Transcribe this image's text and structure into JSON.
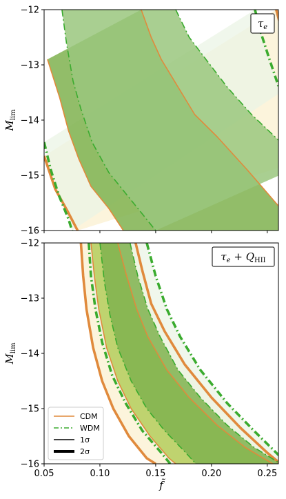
{
  "chart_data": [
    {
      "type": "area",
      "panel_label": "τe",
      "x_axis": {
        "label": "",
        "lim": [
          0.05,
          0.26
        ],
        "ticks": [
          0.05,
          0.1,
          0.15,
          0.2,
          0.25
        ],
        "tick_labels_visible": false
      },
      "y_axis": {
        "label": "M",
        "label_sub": "lim",
        "lim": [
          -16,
          -12
        ],
        "ticks": [
          -16,
          -15,
          -14,
          -13,
          -12
        ],
        "tick_labels": [
          "−16",
          "−15",
          "−14",
          "−13",
          "−12"
        ]
      },
      "series": [
        {
          "model": "CDM",
          "color": "#e08a3c",
          "fill_1sigma": "#7fb24f",
          "fill_2sigma": "#fbf0d0",
          "line": "solid",
          "one_sigma": {
            "low": [
              [
                0.053,
                -12.9
              ],
              [
                0.064,
                -13.6
              ],
              [
                0.072,
                -14.2
              ],
              [
                0.081,
                -14.7
              ],
              [
                0.092,
                -15.2
              ],
              [
                0.108,
                -15.6
              ],
              [
                0.121,
                -16.0
              ]
            ],
            "high": [
              [
                0.137,
                -12.0
              ],
              [
                0.146,
                -12.5
              ],
              [
                0.155,
                -12.9
              ],
              [
                0.17,
                -13.4
              ],
              [
                0.185,
                -13.9
              ],
              [
                0.205,
                -14.3
              ],
              [
                0.232,
                -14.9
              ],
              [
                0.262,
                -15.6
              ],
              [
                0.282,
                -16.0
              ]
            ]
          },
          "two_sigma": {
            "low": [
              [
                0.05,
                -14.65
              ],
              [
                0.06,
                -15.25
              ],
              [
                0.071,
                -15.65
              ],
              [
                0.08,
                -16.0
              ]
            ],
            "high": [
              [
                0.258,
                -12.0
              ],
              [
                0.262,
                -12.3
              ],
              [
                0.268,
                -12.9
              ],
              [
                0.275,
                -13.5
              ],
              [
                0.29,
                -14.2
              ],
              [
                0.302,
                -14.6
              ]
            ]
          }
        },
        {
          "model": "WDM",
          "color": "#3aab2e",
          "fill_1sigma": "#9ac77e",
          "fill_2sigma": "#ebf4e6",
          "line": "dashdot",
          "one_sigma": {
            "low": [
              [
                0.066,
                -12.0
              ],
              [
                0.07,
                -12.6
              ],
              [
                0.076,
                -13.3
              ],
              [
                0.083,
                -13.8
              ],
              [
                0.093,
                -14.4
              ],
              [
                0.108,
                -14.95
              ],
              [
                0.128,
                -15.45
              ],
              [
                0.15,
                -16.0
              ]
            ],
            "high": [
              [
                0.168,
                -12.0
              ],
              [
                0.18,
                -12.5
              ],
              [
                0.195,
                -12.9
              ],
              [
                0.214,
                -13.4
              ],
              [
                0.236,
                -13.9
              ],
              [
                0.262,
                -14.4
              ],
              [
                0.283,
                -14.8
              ]
            ]
          },
          "two_sigma": {
            "low": [
              [
                0.05,
                -14.4
              ],
              [
                0.056,
                -14.9
              ],
              [
                0.063,
                -15.35
              ],
              [
                0.072,
                -15.8
              ],
              [
                0.075,
                -16.0
              ]
            ],
            "high": [
              [
                0.239,
                -12.0
              ],
              [
                0.244,
                -12.4
              ],
              [
                0.252,
                -12.9
              ],
              [
                0.262,
                -13.5
              ]
            ]
          }
        }
      ]
    },
    {
      "type": "area",
      "panel_label": "τe + QHII",
      "x_axis": {
        "label": "f̃",
        "lim": [
          0.05,
          0.26
        ],
        "ticks": [
          0.05,
          0.1,
          0.15,
          0.2,
          0.25
        ],
        "tick_labels": [
          "0.05",
          "0.10",
          "0.15",
          "0.20",
          "0.25"
        ]
      },
      "y_axis": {
        "label": "M",
        "label_sub": "lim",
        "lim": [
          -16,
          -12
        ],
        "ticks": [
          -16,
          -15,
          -14,
          -13,
          -12
        ],
        "tick_labels": [
          "−16",
          "−15",
          "−14",
          "−13",
          "−12"
        ]
      },
      "series": [
        {
          "model": "CDM",
          "color": "#e08a3c",
          "fill_1sigma": "#b6cd5a",
          "fill_2sigma": "#fbf0d0",
          "line": "solid",
          "one_sigma": {
            "low": [
              [
                0.092,
                -12.0
              ],
              [
                0.095,
                -12.6
              ],
              [
                0.099,
                -13.2
              ],
              [
                0.106,
                -13.9
              ],
              [
                0.116,
                -14.5
              ],
              [
                0.128,
                -15.0
              ],
              [
                0.145,
                -15.5
              ],
              [
                0.162,
                -15.9
              ],
              [
                0.168,
                -16.0
              ]
            ],
            "high": [
              [
                0.116,
                -12.0
              ],
              [
                0.124,
                -12.6
              ],
              [
                0.133,
                -13.2
              ],
              [
                0.143,
                -13.7
              ],
              [
                0.16,
                -14.3
              ],
              [
                0.18,
                -14.8
              ],
              [
                0.205,
                -15.3
              ],
              [
                0.23,
                -15.7
              ],
              [
                0.255,
                -16.0
              ]
            ]
          },
          "two_sigma": {
            "low": [
              [
                0.083,
                -12.0
              ],
              [
                0.085,
                -12.6
              ],
              [
                0.088,
                -13.2
              ],
              [
                0.094,
                -13.9
              ],
              [
                0.102,
                -14.5
              ],
              [
                0.112,
                -15.0
              ],
              [
                0.126,
                -15.5
              ],
              [
                0.142,
                -15.9
              ],
              [
                0.15,
                -16.0
              ]
            ],
            "high": [
              [
                0.132,
                -12.0
              ],
              [
                0.138,
                -12.5
              ],
              [
                0.146,
                -13.1
              ],
              [
                0.158,
                -13.6
              ],
              [
                0.176,
                -14.2
              ],
              [
                0.2,
                -14.8
              ],
              [
                0.226,
                -15.35
              ],
              [
                0.25,
                -15.8
              ],
              [
                0.262,
                -16.0
              ]
            ]
          }
        },
        {
          "model": "WDM",
          "color": "#3aab2e",
          "fill_1sigma": "#7fb24f",
          "fill_2sigma": "#ebf4e6",
          "line": "dashdot",
          "one_sigma": {
            "low": [
              [
                0.1,
                -12.0
              ],
              [
                0.104,
                -12.7
              ],
              [
                0.109,
                -13.3
              ],
              [
                0.116,
                -13.9
              ],
              [
                0.128,
                -14.5
              ],
              [
                0.142,
                -15.0
              ],
              [
                0.158,
                -15.4
              ],
              [
                0.177,
                -15.8
              ],
              [
                0.186,
                -16.0
              ]
            ],
            "high": [
              [
                0.127,
                -12.0
              ],
              [
                0.134,
                -12.6
              ],
              [
                0.143,
                -13.2
              ],
              [
                0.154,
                -13.7
              ],
              [
                0.17,
                -14.3
              ],
              [
                0.19,
                -14.8
              ],
              [
                0.214,
                -15.3
              ],
              [
                0.238,
                -15.7
              ],
              [
                0.262,
                -16.0
              ]
            ]
          },
          "two_sigma": {
            "low": [
              [
                0.09,
                -12.0
              ],
              [
                0.092,
                -12.6
              ],
              [
                0.096,
                -13.2
              ],
              [
                0.102,
                -13.8
              ],
              [
                0.111,
                -14.4
              ],
              [
                0.123,
                -14.9
              ],
              [
                0.138,
                -15.4
              ],
              [
                0.155,
                -15.8
              ],
              [
                0.163,
                -16.0
              ]
            ],
            "high": [
              [
                0.142,
                -12.0
              ],
              [
                0.15,
                -12.6
              ],
              [
                0.16,
                -13.2
              ],
              [
                0.172,
                -13.7
              ],
              [
                0.19,
                -14.3
              ],
              [
                0.214,
                -14.9
              ],
              [
                0.238,
                -15.4
              ],
              [
                0.258,
                -15.8
              ],
              [
                0.268,
                -16.0
              ]
            ]
          }
        }
      ],
      "legend": {
        "placement": "lower-left",
        "entries": [
          {
            "label": "CDM",
            "style": "solid",
            "color": "#e08a3c"
          },
          {
            "label": "WDM",
            "style": "dashdot",
            "color": "#3aab2e"
          },
          {
            "label": "1σ",
            "style": "thin",
            "color": "#000000"
          },
          {
            "label": "2σ",
            "style": "thick",
            "color": "#000000"
          }
        ]
      }
    }
  ]
}
